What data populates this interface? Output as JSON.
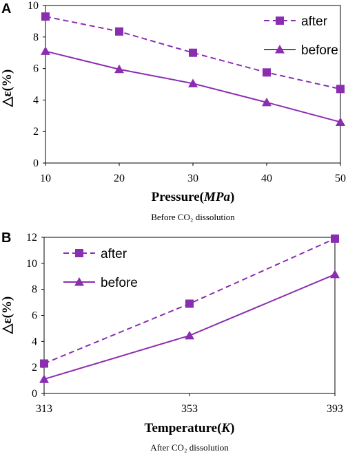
{
  "chart_data": [
    {
      "panel": "A",
      "type": "line",
      "caption": "Before CO₂ dissolution",
      "xlabel": "Pressure(MPa)",
      "xlabel_main": "Pressure(",
      "xlabel_unit": "MPa",
      "xlabel_close": ")",
      "ylabel": "△ε(%)",
      "x": [
        10,
        20,
        30,
        40,
        50
      ],
      "x_tick_labels": [
        "10",
        "20",
        "30",
        "40",
        "50"
      ],
      "xlim": [
        10,
        50
      ],
      "ylim": [
        0,
        10
      ],
      "y_ticks": [
        0,
        2,
        4,
        6,
        8,
        10
      ],
      "grid": false,
      "legend_position": "top-right",
      "series": [
        {
          "name": "after",
          "values": [
            9.3,
            8.35,
            7.0,
            5.75,
            4.7
          ],
          "marker": "square",
          "line": "dashed",
          "color": "#8B2DB0"
        },
        {
          "name": "before",
          "values": [
            7.1,
            5.95,
            5.05,
            3.85,
            2.6
          ],
          "marker": "triangle",
          "line": "solid",
          "color": "#8B2DB0"
        }
      ]
    },
    {
      "panel": "B",
      "type": "line",
      "caption": "After CO₂ dissolution",
      "xlabel": "Temperature(K)",
      "xlabel_main": "Temperature(",
      "xlabel_unit": "K",
      "xlabel_close": ")",
      "ylabel": "△ε(%)",
      "x": [
        313,
        353,
        393
      ],
      "x_tick_labels": [
        "313",
        "353",
        "393"
      ],
      "xlim": [
        313,
        393
      ],
      "ylim": [
        0,
        12
      ],
      "y_ticks": [
        0,
        2,
        4,
        6,
        8,
        10,
        12
      ],
      "grid": false,
      "legend_position": "top-left",
      "series": [
        {
          "name": "after",
          "values": [
            2.3,
            6.9,
            11.9
          ],
          "marker": "square",
          "line": "dashed",
          "color": "#8B2DB0"
        },
        {
          "name": "before",
          "values": [
            1.1,
            4.45,
            9.15
          ],
          "marker": "triangle",
          "line": "solid",
          "color": "#8B2DB0"
        }
      ]
    }
  ]
}
